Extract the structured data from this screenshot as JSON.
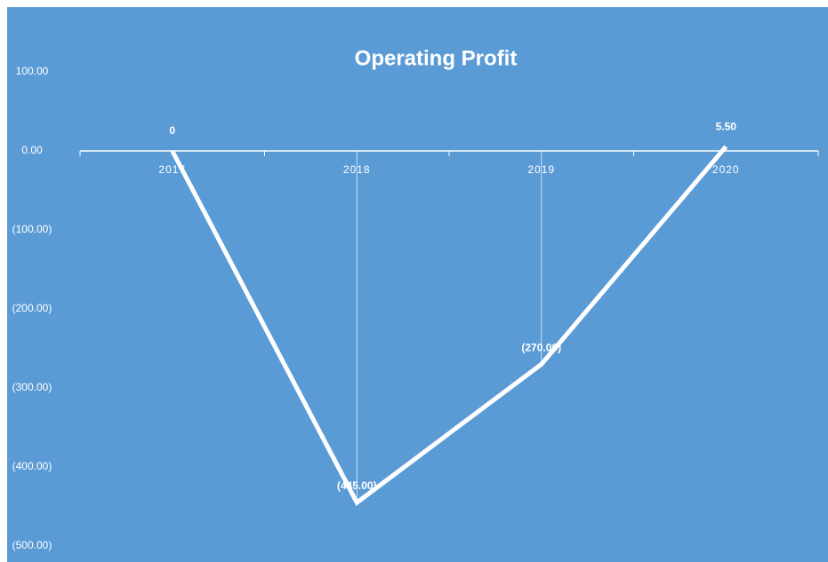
{
  "chart_data": {
    "type": "line",
    "title": "Operating Profit",
    "categories": [
      "2017",
      "2018",
      "2019",
      "2020"
    ],
    "values": [
      0,
      -445,
      -270,
      5.5
    ],
    "value_labels": [
      "0",
      "(445.00)",
      "(270.00)",
      "5.50"
    ],
    "color": "#ffffff",
    "ylim": [
      -500,
      100
    ],
    "yticks": [
      {
        "value": 100,
        "label": "100.00"
      },
      {
        "value": 0,
        "label": "0.00"
      },
      {
        "value": -100,
        "label": "(100.00)"
      },
      {
        "value": -200,
        "label": "(200.00)"
      },
      {
        "value": -300,
        "label": "(300.00)"
      },
      {
        "value": -400,
        "label": "(400.00)"
      },
      {
        "value": -500,
        "label": "(500.00)"
      }
    ]
  }
}
